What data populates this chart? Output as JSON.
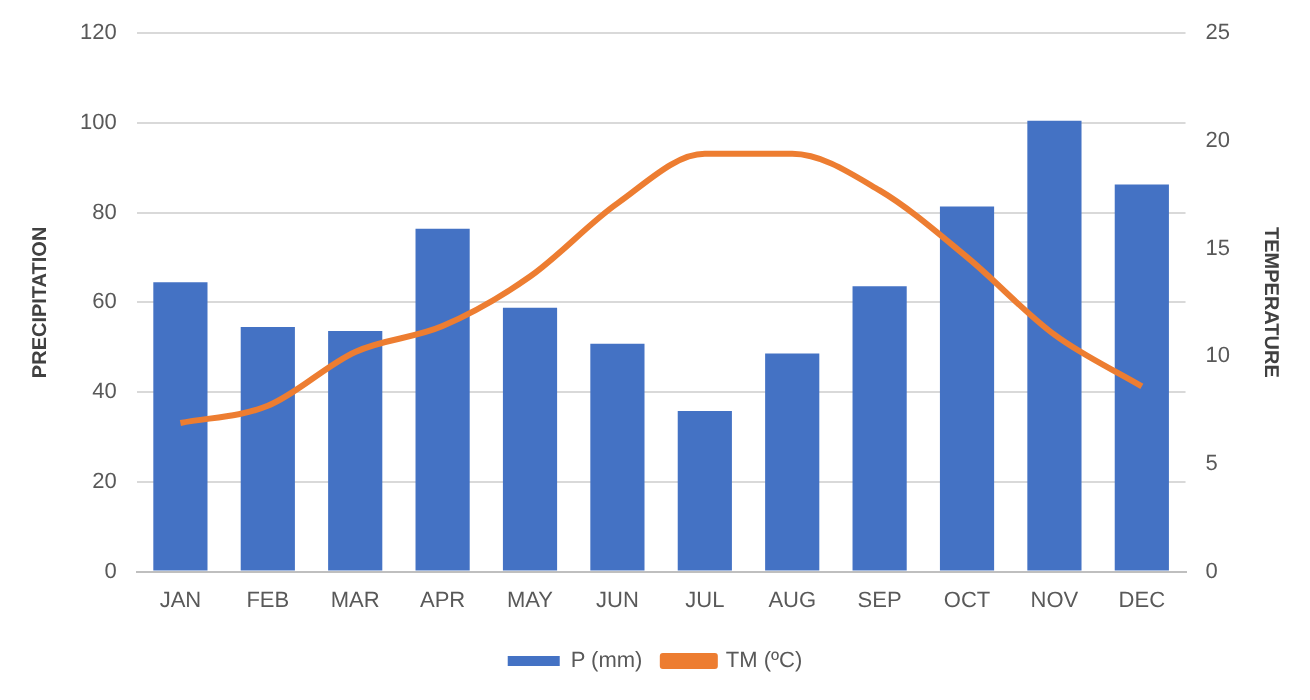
{
  "chart_data": {
    "type": "bar",
    "categories": [
      "JAN",
      "FEB",
      "MAR",
      "APR",
      "MAY",
      "JUN",
      "JUL",
      "AUG",
      "SEP",
      "OCT",
      "NOV",
      "DEC"
    ],
    "ylabel": "PRECIPITATION",
    "y2label": "TEMPERATURE",
    "ylim": [
      0,
      120
    ],
    "yticks": [
      0,
      20,
      40,
      60,
      80,
      100,
      120
    ],
    "y2lim": [
      0,
      25
    ],
    "y2ticks": [
      0,
      5,
      10,
      15,
      20,
      25
    ],
    "series": [
      {
        "name": "P (mm)",
        "color": "#4472c4",
        "values": [
          64.5,
          54.5,
          53.6,
          76.4,
          58.8,
          50.8,
          35.8,
          48.6,
          63.6,
          81.4,
          100.5,
          86.3
        ]
      },
      {
        "name": "TM (ºC)",
        "type": "line",
        "axis": "y2",
        "color": "#ed7d31",
        "values": [
          6.9,
          7.7,
          10.2,
          11.4,
          13.7,
          17.1,
          19.4,
          19.4,
          17.7,
          14.6,
          11.0,
          8.6
        ]
      }
    ],
    "grid": "y",
    "legend": "bottom",
    "marker": "none"
  }
}
